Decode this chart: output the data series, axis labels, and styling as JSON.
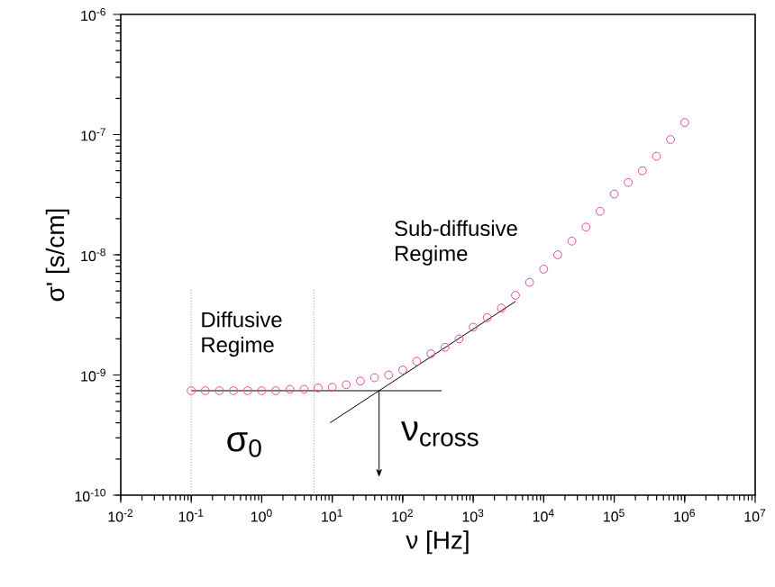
{
  "chart_data": {
    "type": "scatter",
    "xlabel": "ν [Hz]",
    "ylabel": "σ' [s/cm]",
    "log": "xy",
    "xlim": [
      0.01,
      10000000
    ],
    "ylim": [
      1e-10,
      1e-06
    ],
    "xticks": [
      {
        "value": 0.01,
        "label": "10$^{-2}$"
      },
      {
        "value": 0.1,
        "label": "10$^{-1}$"
      },
      {
        "value": 1,
        "label": "10$^{0}$"
      },
      {
        "value": 10,
        "label": "10$^{1}$"
      },
      {
        "value": 100,
        "label": "10$^{2}$"
      },
      {
        "value": 1000,
        "label": "10$^{3}$"
      },
      {
        "value": 10000,
        "label": "10$^{4}$"
      },
      {
        "value": 100000,
        "label": "10$^{5}$"
      },
      {
        "value": 1000000,
        "label": "10$^{6}$"
      },
      {
        "value": 10000000,
        "label": "10$^{7}$"
      }
    ],
    "yticks": [
      {
        "value": 1e-10,
        "label": "10$^{-10}$"
      },
      {
        "value": 1e-09,
        "label": "10$^{-9}$"
      },
      {
        "value": 1e-08,
        "label": "10$^{-8}$"
      },
      {
        "value": 1e-07,
        "label": "10$^{-7}$"
      },
      {
        "value": 1e-06,
        "label": "10$^{-6}$"
      }
    ],
    "series": [
      {
        "type": "scatter",
        "marker": "circle",
        "color": "#e8489a",
        "x": [
          0.1,
          0.158,
          0.251,
          0.398,
          0.631,
          1,
          1.58,
          2.51,
          3.98,
          6.31,
          10,
          15.8,
          25.1,
          39.8,
          63.1,
          100,
          158,
          251,
          398,
          631,
          1000,
          1580,
          2510,
          3980,
          6310,
          10000,
          15800,
          25100,
          39800,
          63100,
          100000,
          158000,
          251000,
          398000,
          631000,
          1000000
        ],
        "values": [
          7.4e-10,
          7.4e-10,
          7.4e-10,
          7.4e-10,
          7.4e-10,
          7.4e-10,
          7.4e-10,
          7.6e-10,
          7.6e-10,
          7.8e-10,
          7.9e-10,
          8.3e-10,
          8.9e-10,
          9.5e-10,
          1e-09,
          1.1e-09,
          1.3e-09,
          1.5e-09,
          1.7e-09,
          2e-09,
          2.5e-09,
          3e-09,
          3.6e-09,
          4.6e-09,
          5.9e-09,
          7.6e-09,
          1e-08,
          1.3e-08,
          1.7e-08,
          2.3e-08,
          3.2e-08,
          4e-08,
          5e-08,
          6.6e-08,
          9.1e-08,
          1.26e-07
        ]
      },
      {
        "type": "line",
        "marker": "none",
        "color": "#000000",
        "x": [
          0.1,
          355
        ],
        "values": [
          7.4e-10,
          7.4e-10
        ]
      },
      {
        "type": "line",
        "marker": "none",
        "color": "#000000",
        "x": [
          9.3,
          4000
        ],
        "values": [
          4e-10,
          4.1e-09
        ]
      }
    ],
    "ref_lines": [
      {
        "axis": "x",
        "value": 0.1,
        "color": "#999999",
        "line_style": "dotted"
      },
      {
        "axis": "x",
        "value": 5.5,
        "color": "#999999",
        "line_style": "dotted"
      }
    ],
    "annotations": [
      "Diffusive Regime",
      "Sub-diffusive Regime",
      "σ$_{0}$",
      "ν$_{cross}$"
    ]
  }
}
